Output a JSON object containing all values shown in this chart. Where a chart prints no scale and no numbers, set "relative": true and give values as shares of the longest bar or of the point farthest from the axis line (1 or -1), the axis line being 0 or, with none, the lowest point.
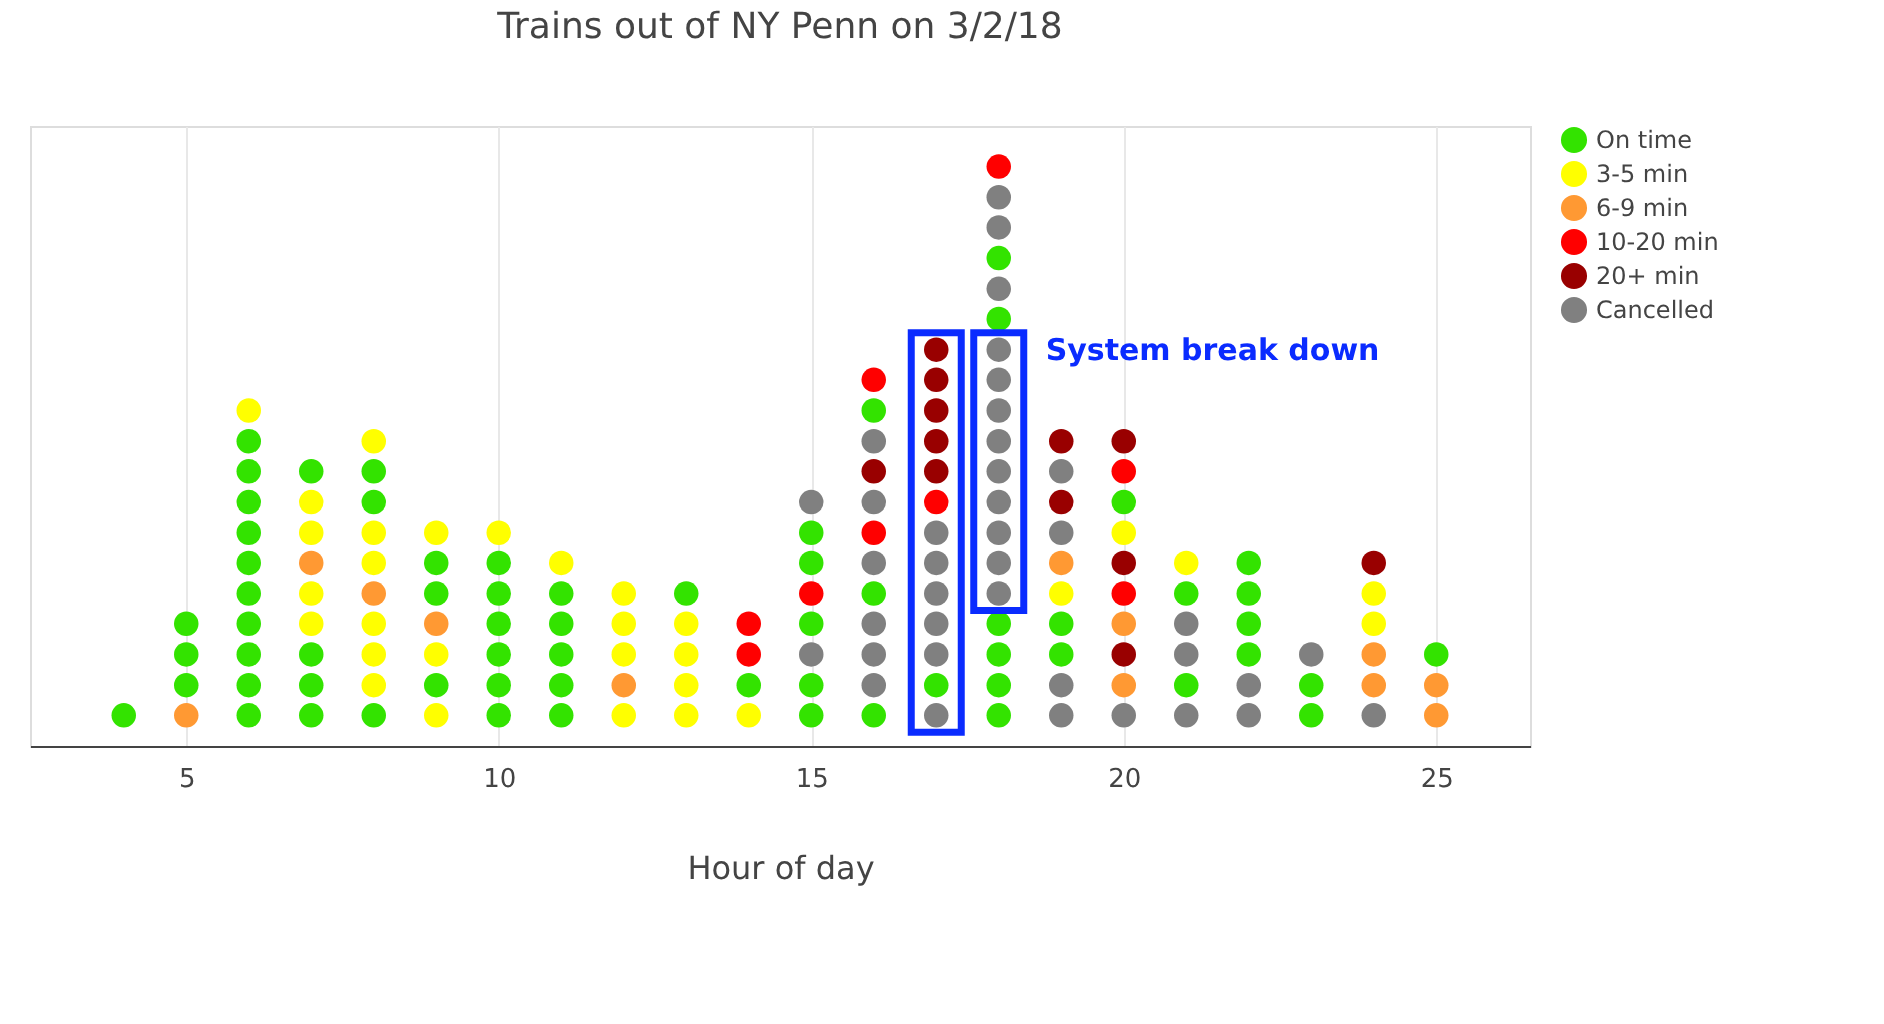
{
  "chart_data": {
    "type": "scatter",
    "title": "Trains out of NY Penn on 3/2/18",
    "xlabel": "Hour of day",
    "relative": true,
    "xlim": [
      2.5,
      26.5
    ],
    "xticks": [
      5,
      10,
      15,
      20,
      25
    ],
    "grid": "x",
    "legend": "top right",
    "marker": "circle",
    "annotations": [
      {
        "text": "System break down",
        "x": 18,
        "y": 0.684
      }
    ],
    "series": [
      {
        "name": "On time",
        "color": "#33e300",
        "x": [
          4,
          5,
          5,
          5,
          6,
          6,
          6,
          6,
          6,
          6,
          6,
          6,
          6,
          6,
          7,
          7,
          7,
          7,
          8,
          8,
          8,
          9,
          9,
          9,
          10,
          10,
          10,
          10,
          10,
          10,
          11,
          11,
          11,
          11,
          11,
          13,
          14,
          15,
          15,
          15,
          15,
          15,
          16,
          16,
          16,
          17,
          18,
          18,
          18,
          18,
          18,
          18,
          19,
          19,
          20,
          21,
          21,
          22,
          22,
          22,
          22,
          23,
          23,
          25
        ],
        "values": [
          0.053,
          0.105,
          0.158,
          0.211,
          0.053,
          0.105,
          0.158,
          0.211,
          0.263,
          0.316,
          0.368,
          0.421,
          0.474,
          0.526,
          0.053,
          0.105,
          0.158,
          0.474,
          0.053,
          0.421,
          0.474,
          0.105,
          0.263,
          0.316,
          0.053,
          0.105,
          0.158,
          0.211,
          0.263,
          0.316,
          0.053,
          0.105,
          0.158,
          0.211,
          0.263,
          0.263,
          0.105,
          0.053,
          0.105,
          0.211,
          0.316,
          0.368,
          0.053,
          0.263,
          0.579,
          0.105,
          0.053,
          0.105,
          0.158,
          0.211,
          0.737,
          0.842,
          0.158,
          0.211,
          0.421,
          0.105,
          0.263,
          0.158,
          0.211,
          0.263,
          0.316,
          0.053,
          0.105,
          0.158
        ]
      },
      {
        "name": "3-5 min",
        "color": "#ffff00",
        "x": [
          6,
          7,
          7,
          7,
          7,
          8,
          8,
          8,
          8,
          8,
          8,
          9,
          9,
          9,
          10,
          11,
          12,
          12,
          12,
          12,
          13,
          13,
          13,
          13,
          14,
          19,
          20,
          21,
          24,
          24
        ],
        "values": [
          0.579,
          0.211,
          0.263,
          0.368,
          0.421,
          0.105,
          0.158,
          0.211,
          0.316,
          0.368,
          0.526,
          0.053,
          0.158,
          0.368,
          0.368,
          0.316,
          0.053,
          0.158,
          0.211,
          0.263,
          0.053,
          0.105,
          0.158,
          0.211,
          0.053,
          0.263,
          0.368,
          0.316,
          0.211,
          0.263
        ]
      },
      {
        "name": "6-9 min",
        "color": "#ff9933",
        "x": [
          5,
          7,
          8,
          9,
          12,
          19,
          20,
          20,
          24,
          24,
          25,
          25
        ],
        "values": [
          0.053,
          0.316,
          0.263,
          0.211,
          0.105,
          0.316,
          0.105,
          0.211,
          0.105,
          0.158,
          0.053,
          0.105
        ]
      },
      {
        "name": "10-20 min",
        "color": "#ff0000",
        "x": [
          14,
          14,
          15,
          16,
          16,
          17,
          18,
          20,
          20
        ],
        "values": [
          0.158,
          0.211,
          0.263,
          0.368,
          0.632,
          0.421,
          1,
          0.263,
          0.474
        ]
      },
      {
        "name": "20+ min",
        "color": "#990000",
        "x": [
          16,
          17,
          17,
          17,
          17,
          17,
          19,
          19,
          20,
          20,
          20,
          24
        ],
        "values": [
          0.474,
          0.474,
          0.526,
          0.579,
          0.632,
          0.684,
          0.421,
          0.526,
          0.158,
          0.316,
          0.526,
          0.316
        ]
      },
      {
        "name": "Cancelled",
        "color": "#808080",
        "x": [
          15,
          15,
          16,
          16,
          16,
          16,
          16,
          16,
          17,
          17,
          17,
          17,
          17,
          17,
          18,
          18,
          18,
          18,
          18,
          18,
          18,
          18,
          18,
          18,
          18,
          18,
          19,
          19,
          19,
          19,
          20,
          21,
          21,
          21,
          22,
          22,
          23,
          24
        ],
        "values": [
          0.158,
          0.421,
          0.105,
          0.158,
          0.211,
          0.316,
          0.421,
          0.526,
          0.053,
          0.158,
          0.211,
          0.263,
          0.316,
          0.368,
          0.263,
          0.316,
          0.368,
          0.421,
          0.474,
          0.526,
          0.579,
          0.632,
          0.684,
          0.789,
          0.895,
          0.947,
          0.053,
          0.105,
          0.368,
          0.474,
          0.053,
          0.053,
          0.158,
          0.211,
          0.053,
          0.105,
          0.158,
          0.053
        ]
      }
    ]
  }
}
